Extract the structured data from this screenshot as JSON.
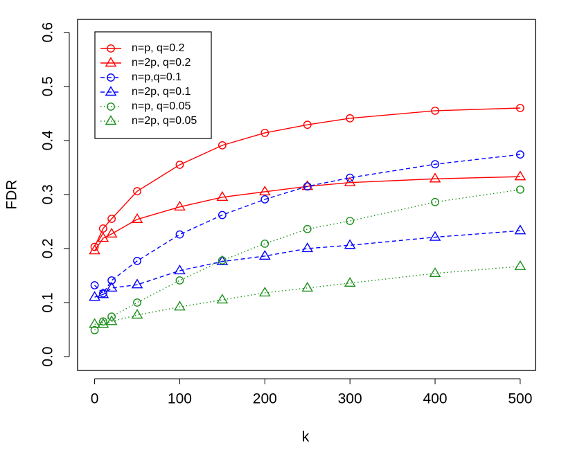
{
  "chart_data": {
    "type": "line",
    "x_label": "k",
    "y_label": "FDR",
    "x": [
      0,
      10,
      20,
      50,
      100,
      150,
      200,
      250,
      300,
      400,
      500
    ],
    "series": [
      {
        "name": "n=p, q=0.2",
        "color": "#ff0000",
        "linestyle": "solid",
        "marker": "circle",
        "values": [
          0.203,
          0.237,
          0.255,
          0.306,
          0.355,
          0.391,
          0.414,
          0.429,
          0.441,
          0.455,
          0.46
        ]
      },
      {
        "name": "n=2p, q=0.2",
        "color": "#ff0000",
        "linestyle": "solid",
        "marker": "triangle",
        "values": [
          0.196,
          0.219,
          0.227,
          0.254,
          0.277,
          0.295,
          0.305,
          0.315,
          0.322,
          0.329,
          0.333
        ]
      },
      {
        "name": "n=p,q=0.1",
        "color": "#0000ff",
        "linestyle": "dashed",
        "marker": "circle",
        "values": [
          0.132,
          0.117,
          0.141,
          0.177,
          0.226,
          0.262,
          0.291,
          0.315,
          0.331,
          0.356,
          0.374
        ]
      },
      {
        "name": "n=2p, q=0.1",
        "color": "#0000ff",
        "linestyle": "dashed",
        "marker": "triangle",
        "values": [
          0.11,
          0.115,
          0.127,
          0.133,
          0.159,
          0.176,
          0.186,
          0.2,
          0.206,
          0.221,
          0.233
        ]
      },
      {
        "name": "n=p, q=0.05",
        "color": "#1b8f1b",
        "linestyle": "dotted",
        "marker": "circle",
        "values": [
          0.049,
          0.065,
          0.074,
          0.1,
          0.141,
          0.178,
          0.209,
          0.236,
          0.251,
          0.286,
          0.309
        ]
      },
      {
        "name": "n=2p, q=0.05",
        "color": "#1b8f1b",
        "linestyle": "dotted",
        "marker": "triangle",
        "values": [
          0.06,
          0.06,
          0.065,
          0.077,
          0.092,
          0.105,
          0.118,
          0.127,
          0.136,
          0.154,
          0.167
        ]
      }
    ],
    "xlim": [
      -20,
      518
    ],
    "ylim": [
      -0.0256,
      0.624
    ],
    "xticks": [
      0,
      100,
      200,
      300,
      400,
      500
    ],
    "yticks": [
      {
        "value": 0,
        "label": "0.0"
      },
      {
        "value": 0.1,
        "label": "0.1"
      },
      {
        "value": 0.2,
        "label": "0.2"
      },
      {
        "value": 0.3,
        "label": "0.3"
      },
      {
        "value": 0.4,
        "label": "0.4"
      },
      {
        "value": 0.5,
        "label": "0.5"
      },
      {
        "value": 0.6,
        "label": "0.6"
      }
    ],
    "legend": "top-left",
    "grid": false
  }
}
